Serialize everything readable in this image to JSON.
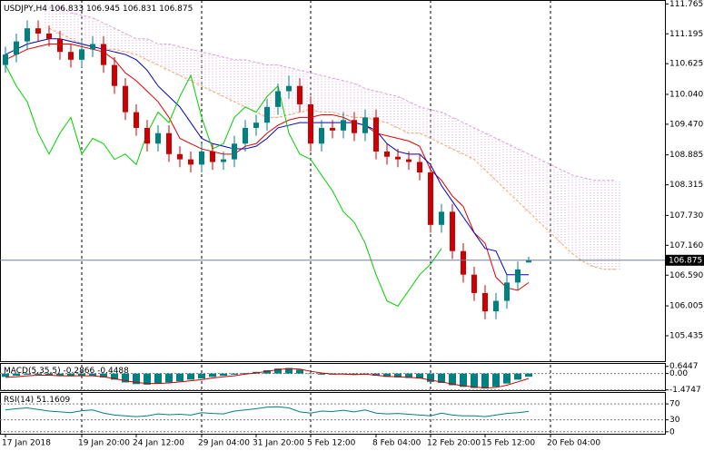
{
  "chart_data": [
    {
      "type": "candlestick",
      "title": "USDJPY,H4",
      "categories": [
        "17 Jan 2018",
        null,
        null,
        null,
        null,
        null,
        null,
        "19 Jan 20:00",
        null,
        null,
        null,
        null,
        "24 Jan 12:00",
        null,
        null,
        null,
        null,
        null,
        "29 Jan 04:00",
        null,
        null,
        null,
        null,
        "31 Jan 20:00",
        null,
        null,
        null,
        null,
        "5 Feb 12:00",
        null,
        null,
        null,
        null,
        null,
        "8 Feb 04:00",
        null,
        null,
        null,
        null,
        "12 Feb 20:00",
        null,
        null,
        null,
        null,
        "15 Feb 12:00",
        null,
        null,
        null,
        null,
        null,
        "20 Feb 04:00",
        null,
        null,
        null,
        null,
        null,
        null
      ],
      "open": [
        110.6,
        110.8,
        111.05,
        111.3,
        111.2,
        111.1,
        110.85,
        110.7,
        110.9,
        111.0,
        110.6,
        110.2,
        109.7,
        109.4,
        109.1,
        109.3,
        108.9,
        108.8,
        108.7,
        108.95,
        108.75,
        108.8,
        109.1,
        109.4,
        109.5,
        109.8,
        110.1,
        110.2,
        109.85,
        109.1,
        109.4,
        109.35,
        109.55,
        109.3,
        109.6,
        108.95,
        108.85,
        108.8,
        108.75,
        108.55,
        107.55,
        107.8,
        107.05,
        106.6,
        106.25,
        105.9,
        106.1,
        106.45,
        106.833,
        null,
        null,
        null,
        null,
        null,
        null,
        null,
        null
      ],
      "high": [
        110.95,
        111.2,
        111.45,
        111.45,
        111.35,
        111.25,
        111.0,
        111.05,
        111.15,
        111.15,
        110.75,
        110.35,
        109.85,
        109.55,
        109.45,
        109.45,
        109.05,
        108.95,
        109.1,
        109.1,
        108.95,
        109.25,
        109.55,
        109.65,
        109.95,
        110.25,
        110.4,
        110.35,
        110.0,
        109.55,
        109.55,
        109.7,
        109.7,
        109.75,
        109.75,
        109.1,
        109.0,
        108.95,
        108.9,
        108.7,
        107.95,
        107.95,
        107.2,
        106.75,
        106.4,
        106.25,
        106.6,
        106.85,
        106.945,
        null,
        null,
        null,
        null,
        null,
        null,
        null,
        null
      ],
      "low": [
        110.45,
        110.65,
        110.9,
        111.05,
        110.95,
        110.7,
        110.55,
        110.55,
        110.75,
        110.45,
        110.05,
        109.55,
        109.25,
        108.95,
        108.95,
        108.75,
        108.65,
        108.55,
        108.55,
        108.6,
        108.6,
        108.65,
        108.95,
        109.25,
        109.35,
        109.65,
        109.95,
        109.7,
        108.95,
        108.95,
        109.2,
        109.2,
        109.15,
        109.15,
        108.8,
        108.7,
        108.65,
        108.6,
        108.4,
        107.4,
        107.4,
        106.9,
        106.45,
        106.1,
        105.75,
        105.75,
        105.95,
        106.3,
        106.831,
        null,
        null,
        null,
        null,
        null,
        null,
        null,
        null
      ],
      "close": [
        110.8,
        111.05,
        111.3,
        111.2,
        111.1,
        110.85,
        110.7,
        110.9,
        111.0,
        110.6,
        110.2,
        109.7,
        109.4,
        109.1,
        109.3,
        108.9,
        108.8,
        108.7,
        108.95,
        108.75,
        108.8,
        109.1,
        109.4,
        109.5,
        109.8,
        110.1,
        110.2,
        109.85,
        109.1,
        109.4,
        109.35,
        109.55,
        109.3,
        109.6,
        108.95,
        108.85,
        108.8,
        108.75,
        108.55,
        107.55,
        107.8,
        107.05,
        106.6,
        106.25,
        105.9,
        106.1,
        106.45,
        106.7,
        106.875,
        null,
        null,
        null,
        null,
        null,
        null,
        null,
        null
      ],
      "up_color": "#008080",
      "down_color": "#cc0000",
      "series": [
        {
          "color": "#e00000",
          "values": [
            110.7,
            110.8,
            110.9,
            110.95,
            111.0,
            111.0,
            111.0,
            110.95,
            110.9,
            110.85,
            110.7,
            110.45,
            110.3,
            110.1,
            109.9,
            109.6,
            109.2,
            109.1,
            109.0,
            108.95,
            108.9,
            108.9,
            109.05,
            109.1,
            109.3,
            109.45,
            109.55,
            109.6,
            109.6,
            109.65,
            109.65,
            109.6,
            109.5,
            109.45,
            109.3,
            109.25,
            109.2,
            109.15,
            109.05,
            108.6,
            108.4,
            108.1,
            107.9,
            107.4,
            107.2,
            106.55,
            106.35,
            106.3,
            106.45,
            null,
            null,
            null,
            null,
            null,
            null,
            null,
            null
          ]
        },
        {
          "color": "#0000c0",
          "values": [
            110.8,
            110.9,
            111.0,
            111.05,
            111.1,
            111.1,
            111.05,
            111.0,
            110.95,
            110.9,
            110.85,
            110.8,
            110.7,
            110.5,
            110.2,
            110.0,
            109.8,
            109.5,
            109.2,
            109.1,
            109.05,
            109.0,
            109.0,
            109.05,
            109.2,
            109.4,
            109.45,
            109.5,
            109.5,
            109.5,
            109.5,
            109.5,
            109.5,
            109.45,
            109.35,
            109.1,
            108.95,
            108.9,
            108.9,
            108.7,
            108.3,
            108.0,
            107.7,
            107.4,
            107.1,
            107.05,
            106.6,
            106.6,
            106.6,
            null,
            null,
            null,
            null,
            null,
            null,
            null,
            null
          ]
        },
        {
          "color": "#00d000",
          "values": [
            110.6,
            110.2,
            109.9,
            109.3,
            108.9,
            109.3,
            109.6,
            108.9,
            109.2,
            109.1,
            108.8,
            108.9,
            108.7,
            109.3,
            109.7,
            109.5,
            110.0,
            110.4,
            109.6,
            109.0,
            109.1,
            109.6,
            109.8,
            109.7,
            110.0,
            110.2,
            109.3,
            108.9,
            108.8,
            108.5,
            108.2,
            107.8,
            107.6,
            107.2,
            106.6,
            106.1,
            106.0,
            106.3,
            106.6,
            106.8,
            107.1,
            null,
            null,
            null,
            null,
            null,
            null,
            null,
            null,
            null,
            null,
            null,
            null,
            null,
            null,
            null,
            null
          ]
        }
      ],
      "span_a": {
        "color": "#f4a460",
        "values": [
          null,
          null,
          null,
          null,
          111.3,
          111.2,
          111.1,
          111.0,
          110.95,
          110.9,
          110.9,
          110.85,
          110.8,
          110.7,
          110.6,
          110.5,
          110.4,
          110.3,
          110.2,
          110.1,
          110.0,
          109.9,
          109.8,
          109.7,
          109.6,
          109.6,
          109.65,
          109.7,
          109.75,
          109.7,
          109.7,
          109.65,
          109.6,
          109.6,
          109.55,
          109.5,
          109.4,
          109.3,
          109.3,
          109.2,
          109.1,
          109.0,
          108.9,
          108.8,
          108.6,
          108.4,
          108.2,
          108.0,
          107.8,
          107.6,
          107.4,
          107.2,
          107.0,
          106.85,
          106.75,
          106.7,
          106.7
        ]
      },
      "span_b": {
        "color": "#d8a0d8",
        "values": [
          null,
          null,
          null,
          null,
          111.7,
          111.7,
          111.6,
          111.55,
          111.5,
          111.4,
          111.3,
          111.2,
          111.1,
          111.1,
          111.0,
          111.0,
          110.95,
          110.9,
          110.85,
          110.8,
          110.75,
          110.7,
          110.7,
          110.65,
          110.6,
          110.6,
          110.55,
          110.5,
          110.45,
          110.4,
          110.35,
          110.3,
          110.25,
          110.15,
          110.1,
          110.05,
          110.0,
          109.9,
          109.8,
          109.75,
          109.7,
          109.6,
          109.5,
          109.4,
          109.3,
          109.2,
          109.1,
          109.0,
          108.9,
          108.8,
          108.7,
          108.6,
          108.5,
          108.45,
          108.4,
          108.4,
          108.4
        ]
      },
      "ylim": [
        104.95,
        111.84
      ],
      "yticks": [
        111.765,
        111.195,
        110.625,
        {
          "value": 110.04,
          "label": "110.040"
        },
        {
          "value": 109.47,
          "label": "109.470"
        },
        108.885,
        108.315,
        {
          "value": 107.73,
          "label": "107.730"
        },
        {
          "value": 107.16,
          "label": "107.160"
        },
        {
          "value": 106.59,
          "label": "106.590"
        },
        106.005,
        105.435
      ]
    },
    {
      "type": "macd",
      "title": "MACD(5,35,5)",
      "series": [
        {
          "color": "#008080",
          "values": [
            -0.3,
            -0.2,
            -0.1,
            -0.1,
            -0.15,
            -0.2,
            -0.25,
            -0.2,
            -0.2,
            -0.35,
            -0.55,
            -0.8,
            -0.95,
            -1.0,
            -0.9,
            -0.8,
            -0.7,
            -0.55,
            -0.45,
            -0.3,
            -0.2,
            -0.1,
            0.05,
            0.15,
            0.3,
            0.45,
            0.5,
            0.35,
            0.0,
            -0.1,
            -0.1,
            -0.05,
            -0.1,
            -0.05,
            -0.2,
            -0.3,
            -0.35,
            -0.4,
            -0.45,
            -0.75,
            -0.85,
            -1.05,
            -1.2,
            -1.3,
            -1.35,
            -1.2,
            -0.9,
            -0.55,
            -0.2866
          ]
        },
        {
          "color": "#cc0000",
          "values": [
            -0.35,
            -0.3,
            -0.2,
            -0.15,
            -0.15,
            -0.2,
            -0.2,
            -0.2,
            -0.2,
            -0.3,
            -0.45,
            -0.65,
            -0.8,
            -0.9,
            -0.9,
            -0.85,
            -0.75,
            -0.65,
            -0.55,
            -0.4,
            -0.3,
            -0.2,
            -0.05,
            0.05,
            0.2,
            0.35,
            0.45,
            0.4,
            0.2,
            0.05,
            -0.05,
            -0.05,
            -0.1,
            -0.05,
            -0.15,
            -0.25,
            -0.3,
            -0.35,
            -0.4,
            -0.6,
            -0.75,
            -0.95,
            -1.1,
            -1.2,
            -1.3,
            -1.25,
            -1.05,
            -0.75,
            -0.4488
          ]
        }
      ],
      "ylim": [
        -1.5,
        0.95
      ],
      "yticks": [
        0.6447,
        {
          "value": 0,
          "label": "0.00"
        },
        -1.4747
      ]
    },
    {
      "type": "rsi",
      "title": "RSI(14)",
      "series": [
        {
          "color": "#008080",
          "values": [
            55,
            58,
            60,
            56,
            52,
            50,
            48,
            53,
            55,
            47,
            42,
            40,
            38,
            40,
            45,
            43,
            44,
            42,
            48,
            46,
            45,
            52,
            55,
            58,
            62,
            63,
            60,
            50,
            47,
            52,
            51,
            54,
            50,
            55,
            47,
            45,
            46,
            44,
            42,
            40,
            47,
            42,
            40,
            40,
            38,
            42,
            46,
            48,
            51.1609
          ]
        }
      ],
      "ylim": [
        -5,
        100
      ],
      "yticks": [
        70,
        30,
        0
      ]
    }
  ]
}
